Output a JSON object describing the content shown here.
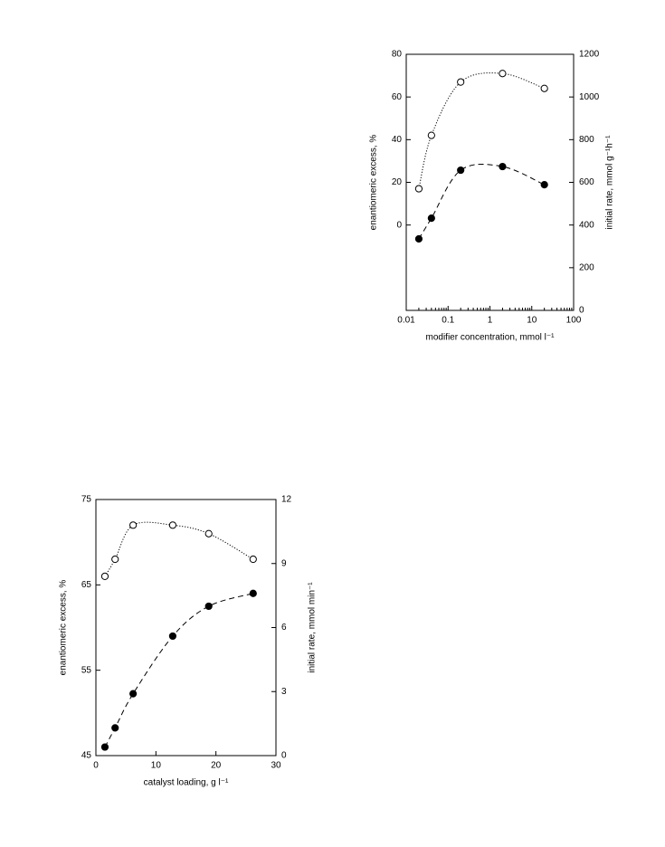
{
  "chart_data": [
    {
      "type": "line",
      "xscale": "log",
      "x": [
        0.02,
        0.04,
        0.2,
        2,
        20
      ],
      "xlim": [
        0.01,
        100
      ],
      "xticks": [
        0.01,
        0.1,
        1,
        10,
        100
      ],
      "ylim": [
        -40,
        80
      ],
      "yticks": [
        0,
        20,
        40,
        60,
        80
      ],
      "y2lim": [
        0,
        1200
      ],
      "y2ticks": [
        0,
        200,
        400,
        600,
        800,
        1000,
        1200
      ],
      "xlabel": "modifier concentration, mmol l⁻¹",
      "ylabel": "enantiomeric excess, %",
      "y2label": "initial rate, mmol g⁻¹h⁻¹",
      "series": [
        {
          "marker": "open",
          "line": "dotted",
          "color": "#000000",
          "values": [
            17,
            42,
            67,
            71,
            64
          ]
        },
        {
          "marker": "filled",
          "line": "dashed",
          "color": "#000000",
          "axis": "y2",
          "values": [
            335,
            432,
            657,
            674,
            589
          ]
        }
      ]
    },
    {
      "type": "line",
      "xscale": "linear",
      "x": [
        1.5,
        3.2,
        6.2,
        12.8,
        18.8,
        26.2
      ],
      "xlim": [
        0,
        30
      ],
      "xticks": [
        0,
        10,
        20,
        30
      ],
      "ylim": [
        45,
        75
      ],
      "yticks": [
        45,
        55,
        65,
        75
      ],
      "y2lim": [
        0,
        12
      ],
      "y2ticks": [
        0,
        3,
        6,
        9,
        12
      ],
      "xlabel": "catalyst loading, g l⁻¹",
      "ylabel": "enantiomeric excess, %",
      "y2label": "initial rate, mmol min⁻¹",
      "series": [
        {
          "marker": "open",
          "line": "dotted",
          "color": "#000000",
          "values": [
            66,
            68,
            72,
            72,
            71,
            68
          ]
        },
        {
          "marker": "filled",
          "line": "dashed",
          "color": "#000000",
          "axis": "y2",
          "values": [
            0.4,
            1.3,
            2.9,
            5.6,
            7.0,
            7.6
          ]
        }
      ]
    }
  ]
}
